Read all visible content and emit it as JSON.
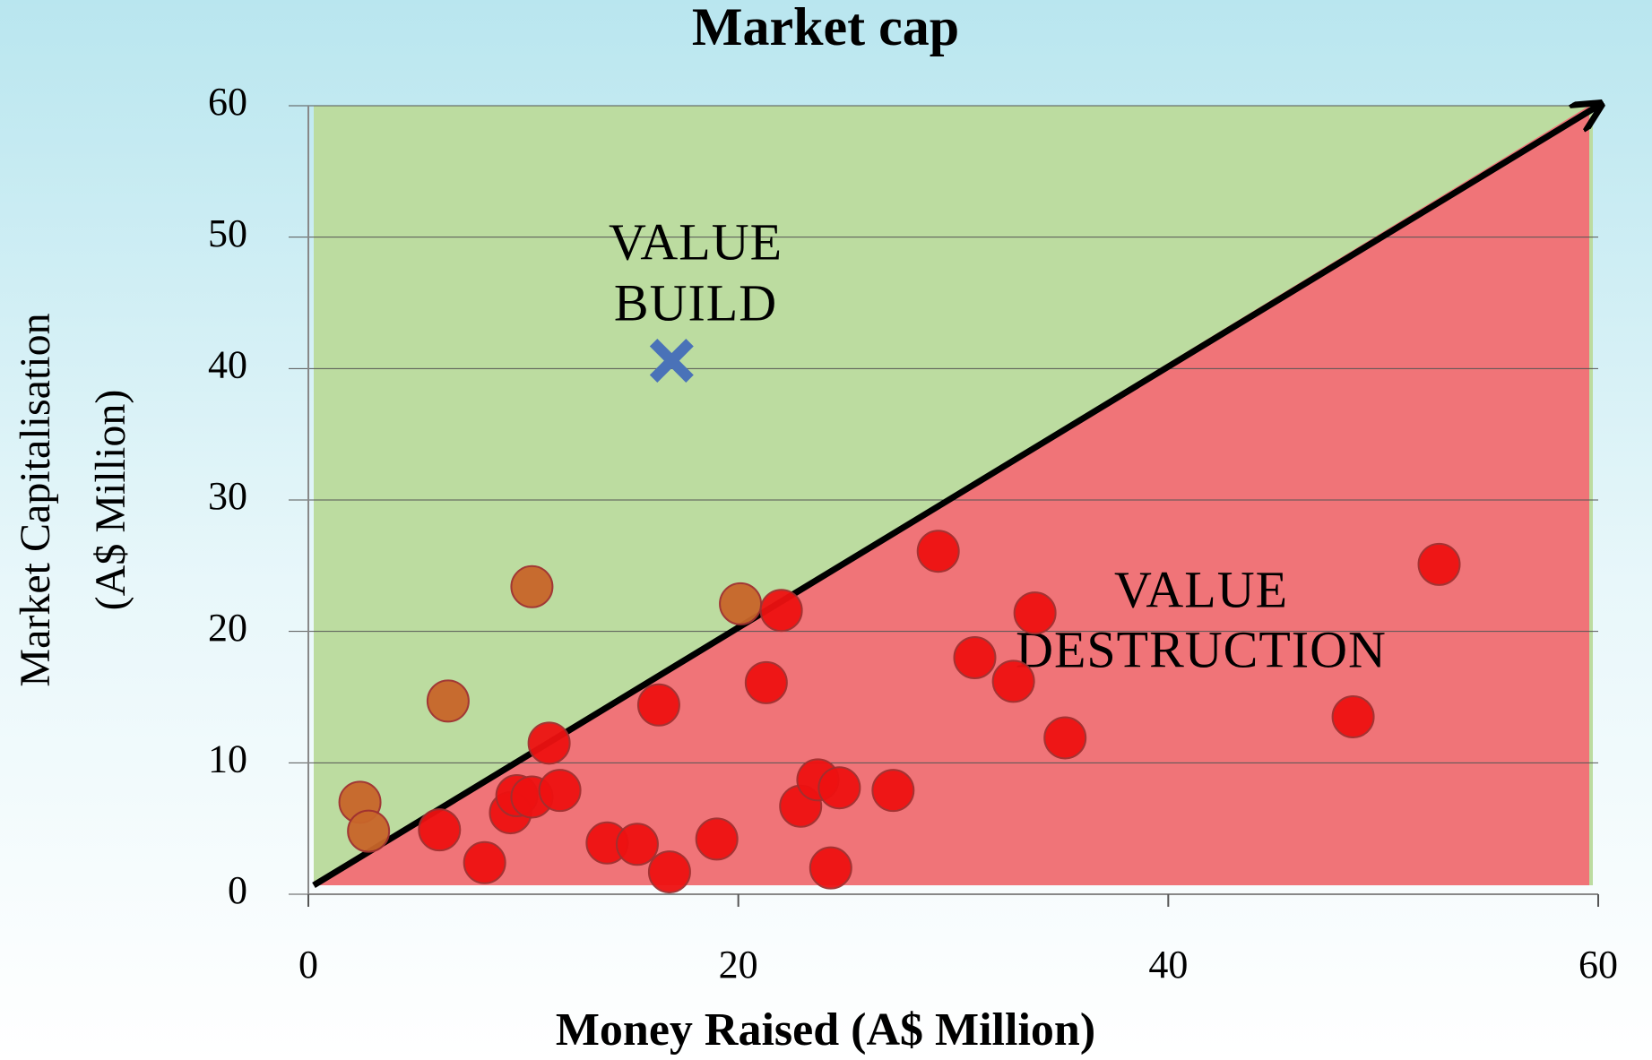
{
  "chart_data": {
    "type": "scatter",
    "title": "Market cap",
    "xlabel": "Money Raised (A$ Million)",
    "ylabel": [
      "Market Capitalisation",
      "(A$ Million)"
    ],
    "xlim": [
      0,
      60
    ],
    "ylim": [
      0,
      60
    ],
    "xticks": [
      0,
      20,
      40,
      60
    ],
    "yticks": [
      0,
      10,
      20,
      30,
      40,
      50,
      60
    ],
    "grid": true,
    "annotations": [
      {
        "lines": [
          "VALUE",
          "BUILD"
        ]
      },
      {
        "lines": [
          "VALUE",
          "DESTRUCTION"
        ]
      }
    ],
    "series": [
      {
        "color": "#c8662a",
        "marker": "circle",
        "x": [
          2.4,
          2.8,
          6.5,
          10.4,
          20.1
        ],
        "values": [
          7.0,
          4.8,
          14.7,
          23.4,
          22.1
        ]
      },
      {
        "color": "#ee1111",
        "marker": "circle",
        "x": [
          22.0,
          21.3,
          16.3,
          11.2,
          29.3,
          33.8,
          31.0,
          32.8,
          35.2,
          48.6,
          52.6,
          6.1,
          8.2,
          9.4,
          9.7,
          10.4,
          11.7,
          13.9,
          15.3,
          16.8,
          19.0,
          22.9,
          23.7,
          24.7,
          24.3,
          27.2
        ],
        "values": [
          21.6,
          16.1,
          14.4,
          11.5,
          26.1,
          21.4,
          18.0,
          16.2,
          11.9,
          13.5,
          25.1,
          4.9,
          2.4,
          6.2,
          7.5,
          7.4,
          7.9,
          3.9,
          3.8,
          1.7,
          4.2,
          6.7,
          8.7,
          8.1,
          2.0,
          7.9
        ]
      },
      {
        "color": "#4a72b8",
        "marker": "x",
        "x": [
          16.9
        ],
        "values": [
          40.6
        ]
      }
    ]
  }
}
